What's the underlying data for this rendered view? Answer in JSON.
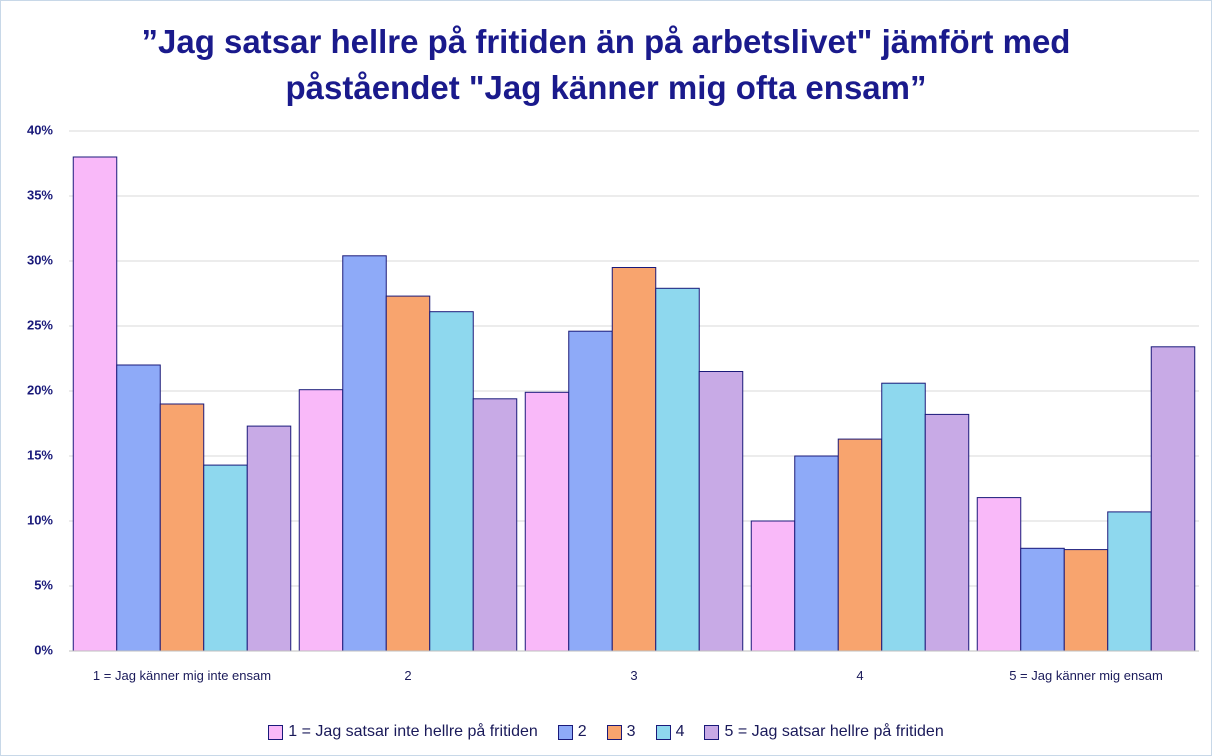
{
  "chart_data": {
    "type": "bar",
    "title": [
      "”Jag satsar hellre på fritiden än på arbetslivet\" jämfört med",
      "påståendet \"Jag känner mig ofta ensam”"
    ],
    "categories": [
      "1 = Jag känner mig inte ensam",
      "2",
      "3",
      "4",
      "5 = Jag känner mig ensam"
    ],
    "series": [
      {
        "name": "1 = Jag satsar inte hellre på fritiden",
        "color": "#f9b9f9",
        "values": [
          38,
          20.1,
          19.9,
          10,
          11.8
        ]
      },
      {
        "name": "2",
        "color": "#8eaaf8",
        "values": [
          22,
          30.4,
          24.6,
          15,
          7.9
        ]
      },
      {
        "name": "3",
        "color": "#f8a46e",
        "values": [
          19,
          27.3,
          29.5,
          16.3,
          7.8
        ]
      },
      {
        "name": "4",
        "color": "#8ed8ee",
        "values": [
          14.3,
          26.1,
          27.9,
          20.6,
          10.7
        ]
      },
      {
        "name": "5 = Jag satsar hellre på fritiden",
        "color": "#c8aae6",
        "values": [
          17.3,
          19.4,
          21.5,
          18.2,
          23.4
        ]
      }
    ],
    "ylim": [
      0,
      40
    ],
    "yticks": [
      {
        "value": 0,
        "label": "0%"
      },
      {
        "value": 5,
        "label": "5%"
      },
      {
        "value": 10,
        "label": "10%"
      },
      {
        "value": 15,
        "label": "15%"
      },
      {
        "value": 20,
        "label": "20%"
      },
      {
        "value": 25,
        "label": "25%"
      },
      {
        "value": 30,
        "label": "30%"
      },
      {
        "value": 35,
        "label": "35%"
      },
      {
        "value": 40,
        "label": "40%"
      }
    ],
    "grid": true,
    "legend": "bottom"
  }
}
